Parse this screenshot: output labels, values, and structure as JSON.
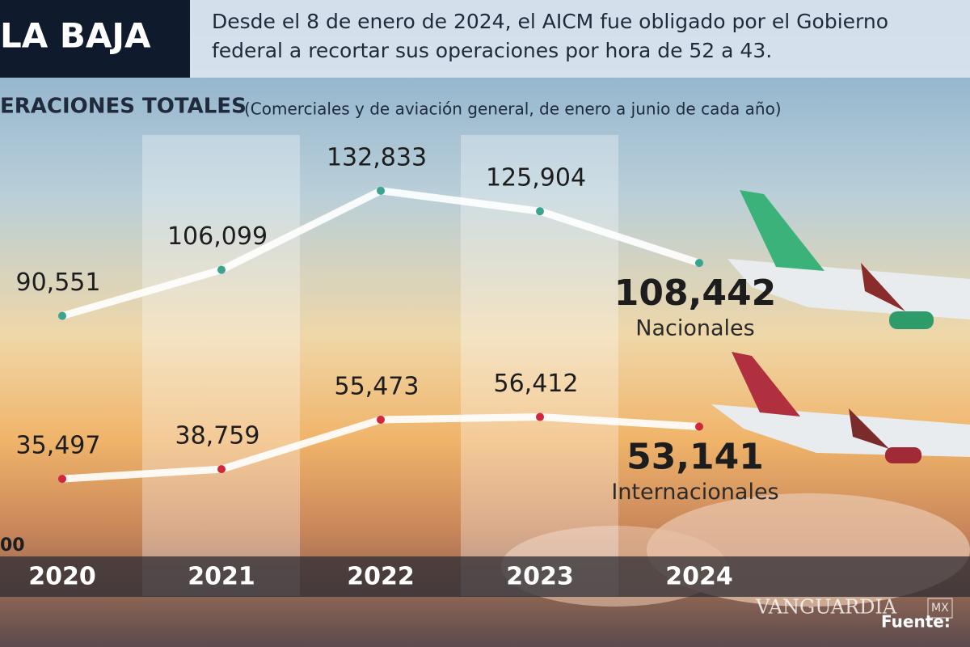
{
  "header": {
    "title": "LA BAJA",
    "text_line_1": "Desde el 8 de enero de 2024, el AICM fue obligado por el Gobierno",
    "text_line_2": "federal a recortar sus operaciones por hora de 52 a 43."
  },
  "chart_data": {
    "type": "line",
    "title": "ERACIONES TOTALES",
    "subtitle": "(Comerciales y de aviación general, de enero a junio de cada año)",
    "categories": [
      "2020",
      "2021",
      "2022",
      "2023",
      "2024"
    ],
    "ylim": [
      0,
      150000
    ],
    "axis_fragment": "00",
    "highlighted_categories": [
      1,
      3
    ],
    "series": [
      {
        "name": "Nacionales",
        "color": "#3aa58f",
        "values": [
          90551,
          106099,
          132833,
          125904,
          108442
        ],
        "value_labels": [
          "90,551",
          "106,099",
          "132,833",
          "125,904",
          "108,442"
        ]
      },
      {
        "name": "Internacionales",
        "color": "#d0283a",
        "values": [
          35497,
          38759,
          55473,
          56412,
          53141
        ],
        "value_labels": [
          "35,497",
          "38,759",
          "55,473",
          "56,412",
          "53,141"
        ]
      }
    ]
  },
  "source": "Fuente:",
  "watermark": "VANGUARDIA",
  "watermark_badge": "MX"
}
